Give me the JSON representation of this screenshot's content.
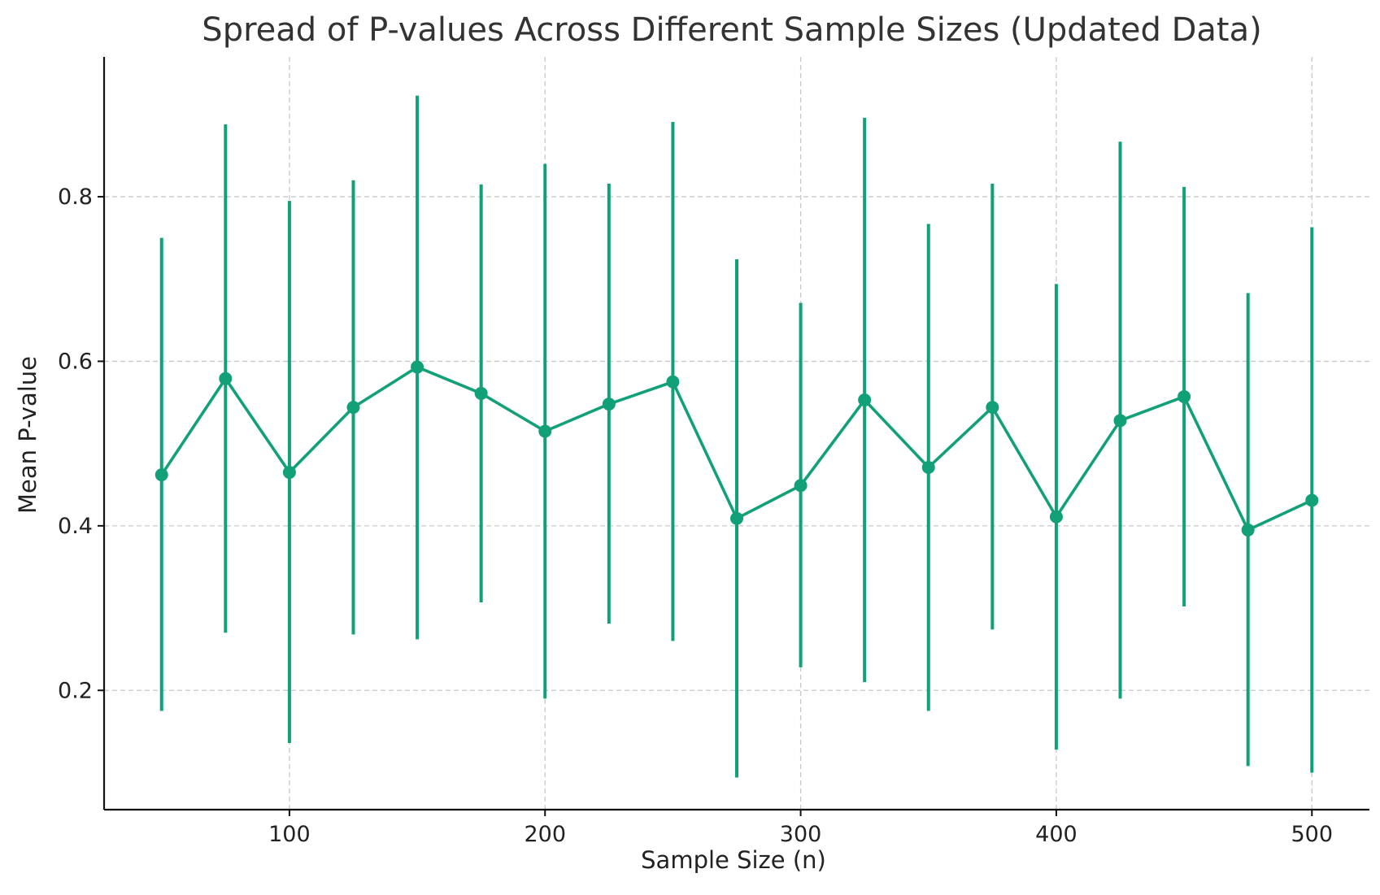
{
  "chart_data": {
    "type": "line",
    "title": "Spread of P-values Across Different Sample Sizes (Updated Data)",
    "xlabel": "Sample Size (n)",
    "ylabel": "Mean P-value",
    "xlim": [
      27.5,
      522.5
    ],
    "ylim": [
      0.055,
      0.97
    ],
    "xticks": [
      100,
      200,
      300,
      400,
      500
    ],
    "xtick_labels": [
      "100",
      "200",
      "300",
      "400",
      "500"
    ],
    "yticks": [
      0.2,
      0.4,
      0.6,
      0.8
    ],
    "ytick_labels": [
      "0.2",
      "0.4",
      "0.6",
      "0.8"
    ],
    "grid": true,
    "color": "#12a079",
    "x": [
      50,
      75,
      100,
      125,
      150,
      175,
      200,
      225,
      250,
      275,
      300,
      325,
      350,
      375,
      400,
      425,
      450,
      475,
      500
    ],
    "series": [
      {
        "values": [
          0.462,
          0.579,
          0.465,
          0.544,
          0.593,
          0.561,
          0.515,
          0.548,
          0.575,
          0.409,
          0.449,
          0.553,
          0.471,
          0.544,
          0.411,
          0.528,
          0.557,
          0.395,
          0.431
        ],
        "error_low": [
          0.175,
          0.27,
          0.136,
          0.268,
          0.262,
          0.307,
          0.19,
          0.281,
          0.26,
          0.094,
          0.228,
          0.21,
          0.175,
          0.274,
          0.128,
          0.19,
          0.302,
          0.108,
          0.1
        ],
        "error_high": [
          0.75,
          0.888,
          0.795,
          0.82,
          0.923,
          0.815,
          0.84,
          0.816,
          0.891,
          0.724,
          0.671,
          0.896,
          0.767,
          0.816,
          0.694,
          0.867,
          0.812,
          0.683,
          0.763
        ]
      }
    ]
  }
}
